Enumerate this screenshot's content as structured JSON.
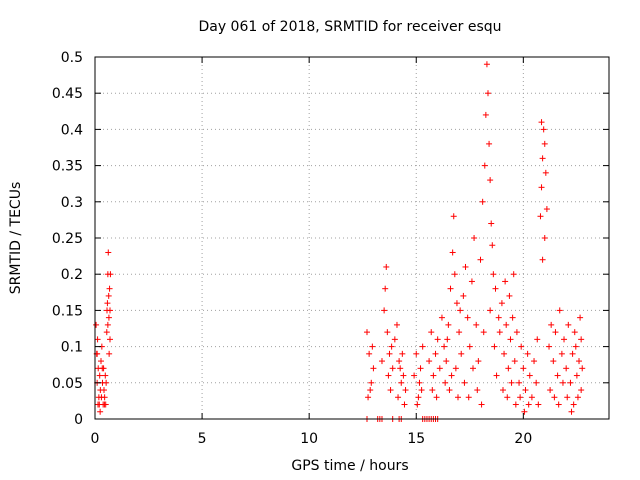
{
  "chart_data": {
    "type": "scatter",
    "title": "Day 061 of 2018, SRMTID for receiver esqu",
    "xlabel": "GPS time / hours",
    "ylabel": "SRMTID / TECUs",
    "xlim": [
      0,
      24
    ],
    "ylim": [
      0,
      0.5
    ],
    "grid": true,
    "marker": "+",
    "marker_color": "#ff0000",
    "x_ticks": [
      0,
      5,
      10,
      15,
      20
    ],
    "x_tick_labels": [
      "0",
      "5",
      "10",
      "15",
      "20"
    ],
    "y_ticks": [
      0,
      0.05,
      0.1,
      0.15,
      0.2,
      0.25,
      0.3,
      0.35,
      0.4,
      0.45,
      0.5
    ],
    "y_tick_labels": [
      "0",
      "0.05",
      "0.1",
      "0.15",
      "0.2",
      "0.25",
      "0.3",
      "0.35",
      "0.4",
      "0.45",
      "0.5"
    ],
    "series": [
      {
        "name": "SRMTID",
        "points": [
          [
            0.05,
            0.13
          ],
          [
            0.08,
            0.09
          ],
          [
            0.1,
            0.05
          ],
          [
            0.12,
            0.11
          ],
          [
            0.15,
            0.07
          ],
          [
            0.18,
            0.03
          ],
          [
            0.2,
            0.02
          ],
          [
            0.22,
            0.06
          ],
          [
            0.25,
            0.04
          ],
          [
            0.28,
            0.08
          ],
          [
            0.3,
            0.03
          ],
          [
            0.32,
            0.1
          ],
          [
            0.35,
            0.05
          ],
          [
            0.38,
            0.02
          ],
          [
            0.4,
            0.07
          ],
          [
            0.42,
            0.04
          ],
          [
            0.45,
            0.03
          ],
          [
            0.48,
            0.06
          ],
          [
            0.5,
            0.02
          ],
          [
            0.52,
            0.05
          ],
          [
            0.55,
            0.12
          ],
          [
            0.58,
            0.16
          ],
          [
            0.6,
            0.2
          ],
          [
            0.62,
            0.23
          ],
          [
            0.65,
            0.14
          ],
          [
            0.68,
            0.18
          ],
          [
            0.7,
            0.11
          ],
          [
            0.72,
            0.2
          ],
          [
            0.6,
            0.13
          ],
          [
            0.66,
            0.09
          ],
          [
            0.1,
            0.09
          ],
          [
            0.14,
            0.02
          ],
          [
            0.24,
            0.01
          ],
          [
            0.34,
            0.07
          ],
          [
            0.44,
            0.02
          ],
          [
            0.56,
            0.15
          ],
          [
            0.64,
            0.17
          ],
          [
            0.7,
            0.15
          ],
          [
            12.7,
            0.12
          ],
          [
            12.8,
            0.09
          ],
          [
            12.9,
            0.05
          ],
          [
            13.0,
            0.07
          ],
          [
            12.75,
            0.03
          ],
          [
            12.85,
            0.04
          ],
          [
            12.95,
            0.1
          ],
          [
            13.4,
            0.08
          ],
          [
            13.5,
            0.15
          ],
          [
            13.6,
            0.21
          ],
          [
            13.55,
            0.18
          ],
          [
            13.65,
            0.12
          ],
          [
            13.7,
            0.06
          ],
          [
            13.75,
            0.09
          ],
          [
            13.8,
            0.04
          ],
          [
            13.85,
            0.1
          ],
          [
            13.9,
            0.07
          ],
          [
            14.0,
            0.11
          ],
          [
            14.1,
            0.13
          ],
          [
            14.2,
            0.08
          ],
          [
            14.3,
            0.05
          ],
          [
            14.4,
            0.06
          ],
          [
            14.5,
            0.04
          ],
          [
            14.35,
            0.09
          ],
          [
            14.45,
            0.02
          ],
          [
            14.25,
            0.07
          ],
          [
            14.15,
            0.03
          ],
          [
            14.9,
            0.06
          ],
          [
            15.0,
            0.09
          ],
          [
            15.1,
            0.03
          ],
          [
            15.2,
            0.07
          ],
          [
            15.3,
            0.1
          ],
          [
            15.15,
            0.05
          ],
          [
            15.05,
            0.02
          ],
          [
            15.25,
            0.04
          ],
          [
            15.6,
            0.08
          ],
          [
            15.7,
            0.12
          ],
          [
            15.8,
            0.06
          ],
          [
            15.9,
            0.09
          ],
          [
            16.0,
            0.11
          ],
          [
            16.1,
            0.07
          ],
          [
            15.75,
            0.04
          ],
          [
            15.95,
            0.03
          ],
          [
            16.2,
            0.14
          ],
          [
            16.3,
            0.1
          ],
          [
            16.4,
            0.08
          ],
          [
            16.5,
            0.13
          ],
          [
            16.6,
            0.18
          ],
          [
            16.7,
            0.23
          ],
          [
            16.8,
            0.2
          ],
          [
            16.9,
            0.16
          ],
          [
            17.0,
            0.12
          ],
          [
            17.1,
            0.09
          ],
          [
            16.35,
            0.05
          ],
          [
            16.55,
            0.04
          ],
          [
            16.75,
            0.28
          ],
          [
            16.85,
            0.07
          ],
          [
            16.95,
            0.03
          ],
          [
            17.05,
            0.15
          ],
          [
            16.45,
            0.11
          ],
          [
            16.65,
            0.06
          ],
          [
            17.2,
            0.17
          ],
          [
            17.3,
            0.21
          ],
          [
            17.4,
            0.14
          ],
          [
            17.5,
            0.1
          ],
          [
            17.6,
            0.19
          ],
          [
            17.7,
            0.25
          ],
          [
            17.8,
            0.13
          ],
          [
            17.9,
            0.08
          ],
          [
            18.0,
            0.22
          ],
          [
            18.1,
            0.3
          ],
          [
            18.2,
            0.35
          ],
          [
            18.25,
            0.42
          ],
          [
            18.3,
            0.49
          ],
          [
            18.35,
            0.45
          ],
          [
            18.4,
            0.38
          ],
          [
            18.45,
            0.33
          ],
          [
            18.5,
            0.27
          ],
          [
            18.55,
            0.24
          ],
          [
            18.6,
            0.2
          ],
          [
            18.7,
            0.18
          ],
          [
            17.25,
            0.05
          ],
          [
            17.45,
            0.03
          ],
          [
            17.65,
            0.07
          ],
          [
            17.85,
            0.04
          ],
          [
            18.05,
            0.02
          ],
          [
            18.15,
            0.12
          ],
          [
            18.45,
            0.15
          ],
          [
            18.65,
            0.1
          ],
          [
            18.75,
            0.06
          ],
          [
            18.85,
            0.14
          ],
          [
            18.9,
            0.12
          ],
          [
            19.0,
            0.16
          ],
          [
            19.1,
            0.09
          ],
          [
            19.2,
            0.13
          ],
          [
            19.3,
            0.07
          ],
          [
            19.4,
            0.11
          ],
          [
            19.5,
            0.14
          ],
          [
            19.6,
            0.08
          ],
          [
            19.7,
            0.12
          ],
          [
            19.8,
            0.05
          ],
          [
            19.9,
            0.1
          ],
          [
            20.0,
            0.07
          ],
          [
            20.1,
            0.04
          ],
          [
            20.2,
            0.09
          ],
          [
            20.3,
            0.06
          ],
          [
            20.4,
            0.03
          ],
          [
            20.5,
            0.08
          ],
          [
            20.6,
            0.05
          ],
          [
            20.7,
            0.02
          ],
          [
            20.65,
            0.11
          ],
          [
            19.05,
            0.04
          ],
          [
            19.25,
            0.03
          ],
          [
            19.45,
            0.05
          ],
          [
            19.65,
            0.02
          ],
          [
            19.85,
            0.03
          ],
          [
            20.05,
            0.01
          ],
          [
            20.25,
            0.02
          ],
          [
            19.15,
            0.19
          ],
          [
            19.35,
            0.17
          ],
          [
            19.55,
            0.2
          ],
          [
            20.8,
            0.28
          ],
          [
            20.85,
            0.32
          ],
          [
            20.9,
            0.36
          ],
          [
            20.95,
            0.4
          ],
          [
            21.0,
            0.38
          ],
          [
            21.05,
            0.34
          ],
          [
            21.1,
            0.29
          ],
          [
            21.0,
            0.25
          ],
          [
            20.9,
            0.22
          ],
          [
            20.85,
            0.41
          ],
          [
            21.2,
            0.1
          ],
          [
            21.3,
            0.13
          ],
          [
            21.4,
            0.08
          ],
          [
            21.5,
            0.12
          ],
          [
            21.6,
            0.06
          ],
          [
            21.7,
            0.15
          ],
          [
            21.8,
            0.09
          ],
          [
            21.9,
            0.11
          ],
          [
            22.0,
            0.07
          ],
          [
            22.1,
            0.13
          ],
          [
            22.2,
            0.05
          ],
          [
            22.3,
            0.09
          ],
          [
            22.4,
            0.12
          ],
          [
            22.5,
            0.06
          ],
          [
            22.6,
            0.08
          ],
          [
            22.7,
            0.04
          ],
          [
            22.65,
            0.14
          ],
          [
            22.55,
            0.03
          ],
          [
            22.45,
            0.1
          ],
          [
            22.35,
            0.02
          ],
          [
            21.25,
            0.04
          ],
          [
            21.45,
            0.03
          ],
          [
            21.65,
            0.02
          ],
          [
            21.85,
            0.05
          ],
          [
            22.05,
            0.03
          ],
          [
            22.25,
            0.01
          ],
          [
            22.75,
            0.07
          ],
          [
            22.7,
            0.11
          ],
          [
            12.7,
            0.0
          ],
          [
            13.2,
            0.0
          ],
          [
            13.3,
            0.0
          ],
          [
            13.4,
            0.0
          ],
          [
            13.9,
            0.0
          ],
          [
            14.2,
            0.0
          ],
          [
            14.3,
            0.0
          ],
          [
            15.3,
            0.0
          ],
          [
            15.4,
            0.0
          ],
          [
            15.5,
            0.0
          ],
          [
            15.6,
            0.0
          ],
          [
            15.7,
            0.0
          ],
          [
            15.8,
            0.0
          ],
          [
            15.9,
            0.0
          ],
          [
            16.0,
            0.0
          ]
        ]
      }
    ]
  }
}
